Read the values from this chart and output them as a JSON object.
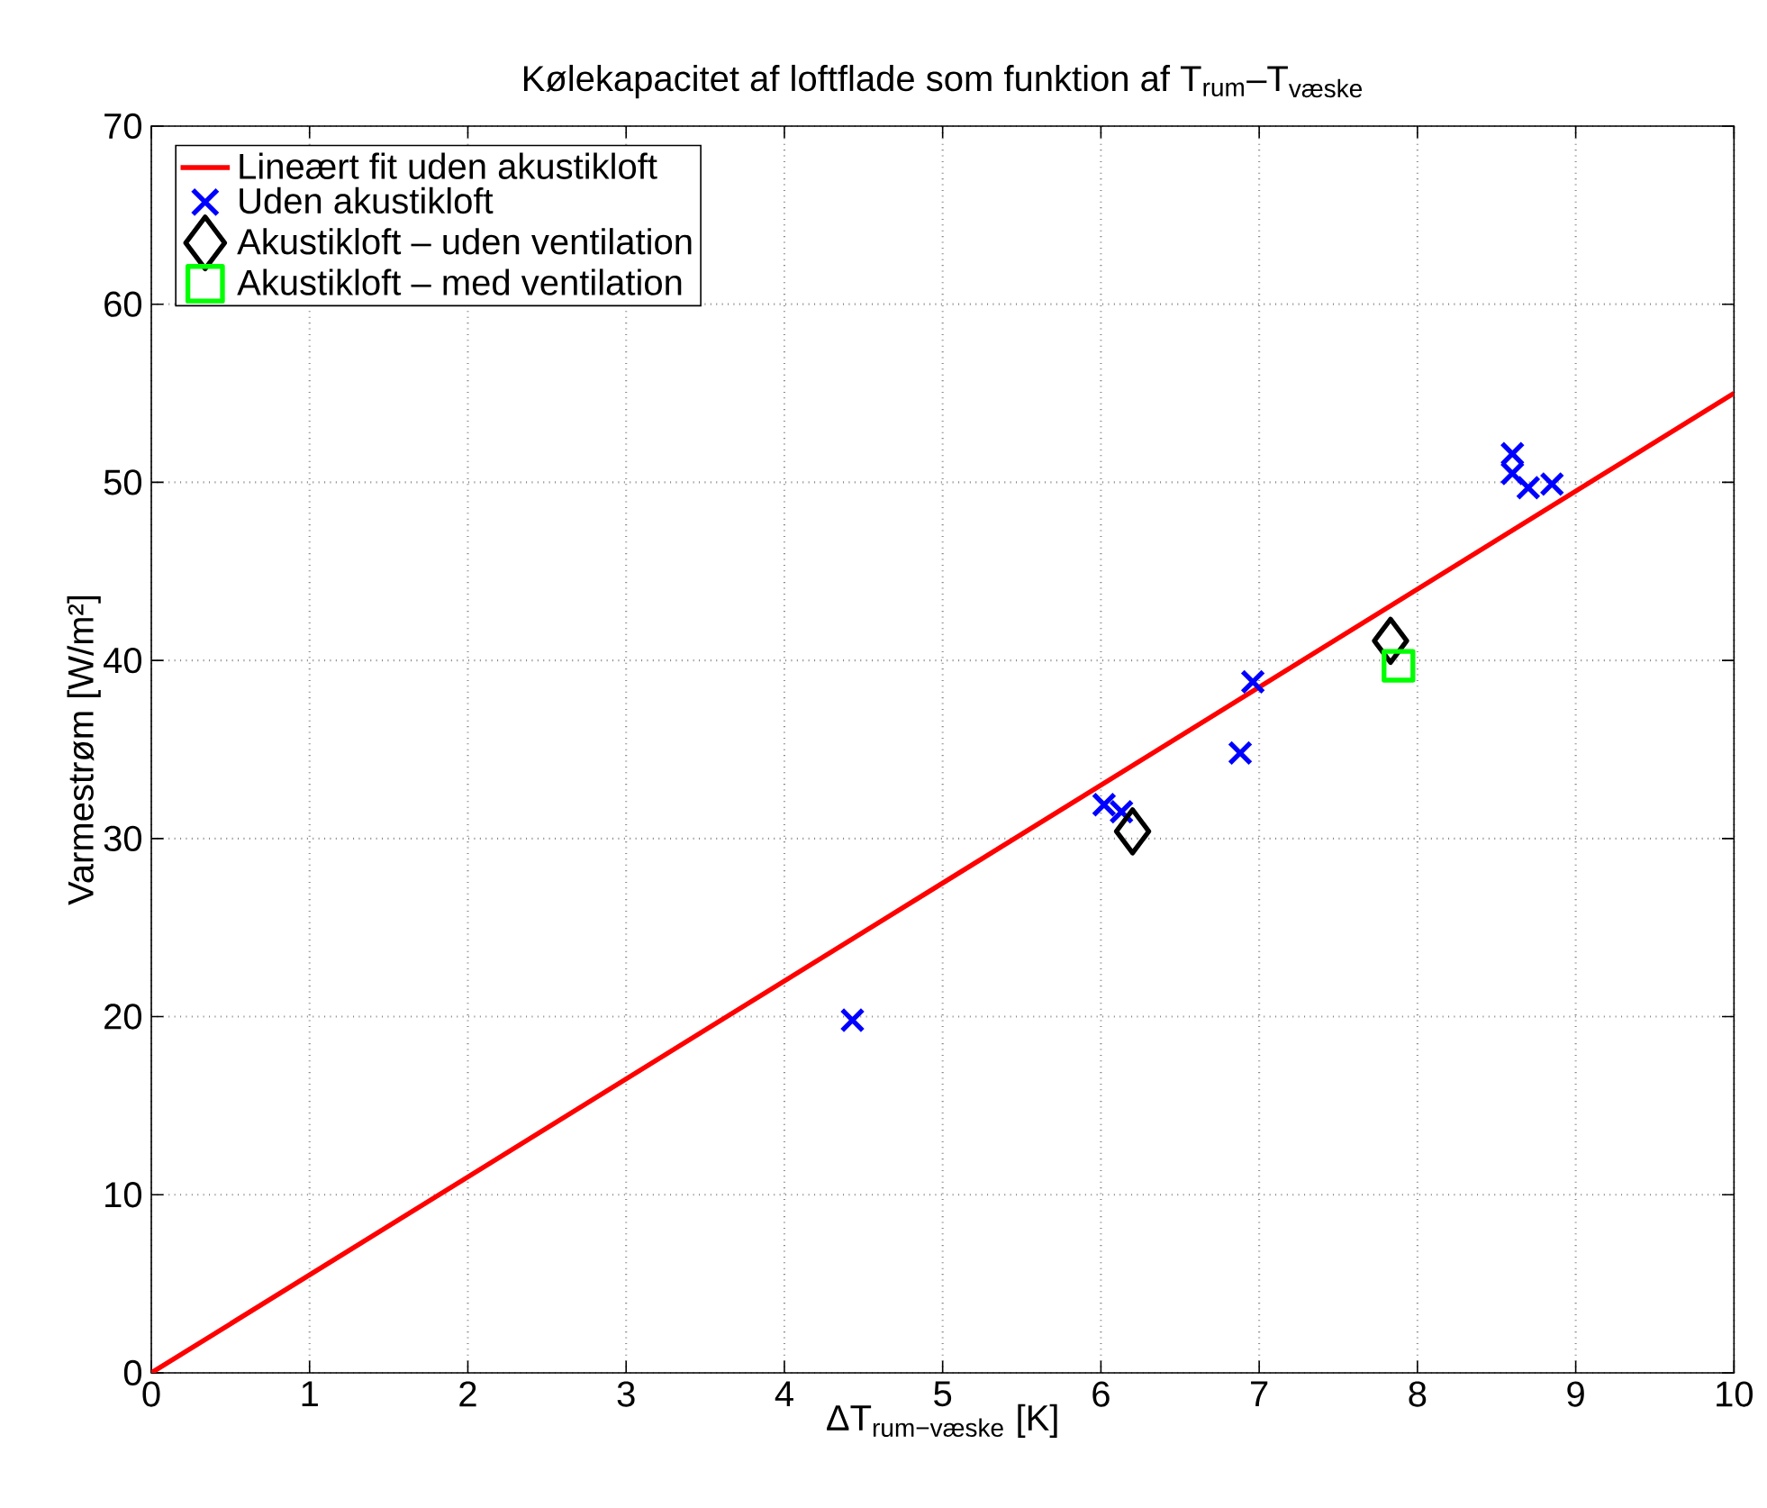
{
  "chart_data": {
    "type": "scatter",
    "title": "Kølekapacitet af loftflade som funktion af T$_{rum}$–T$_{væske}$",
    "xlabel": "ΔT$_{rum−væske}$ [K]",
    "ylabel": "Varmestrøm [W/m²]",
    "xlim": [
      0,
      10
    ],
    "ylim": [
      0,
      70
    ],
    "xticks": [
      0,
      1,
      2,
      3,
      4,
      5,
      6,
      7,
      8,
      9,
      10
    ],
    "yticks": [
      0,
      10,
      20,
      30,
      40,
      50,
      60,
      70
    ],
    "grid": true,
    "legend": "top left",
    "series": [
      {
        "name": "Lineært fit uden akustikloft",
        "type": "line",
        "color": "#ff0000",
        "marker": "none",
        "line_style": "solid",
        "x": [
          0,
          10
        ],
        "values": [
          0,
          55
        ]
      },
      {
        "name": "Uden akustikloft",
        "color": "#0000ff",
        "marker": "cross",
        "x": [
          4.43,
          6.02,
          6.13,
          6.88,
          6.96,
          8.6,
          8.6,
          8.7,
          8.85
        ],
        "values": [
          19.8,
          31.9,
          31.5,
          34.8,
          38.8,
          51.6,
          50.5,
          49.7,
          49.9
        ]
      },
      {
        "name": "Akustikloft – uden ventilation",
        "color": "#000000",
        "marker": "diamond",
        "x": [
          6.2,
          7.83
        ],
        "values": [
          30.4,
          41.1
        ]
      },
      {
        "name": "Akustikloft – med ventilation",
        "color": "#00ff00",
        "marker": "square",
        "x": [
          7.88
        ],
        "values": [
          39.7
        ]
      }
    ]
  }
}
